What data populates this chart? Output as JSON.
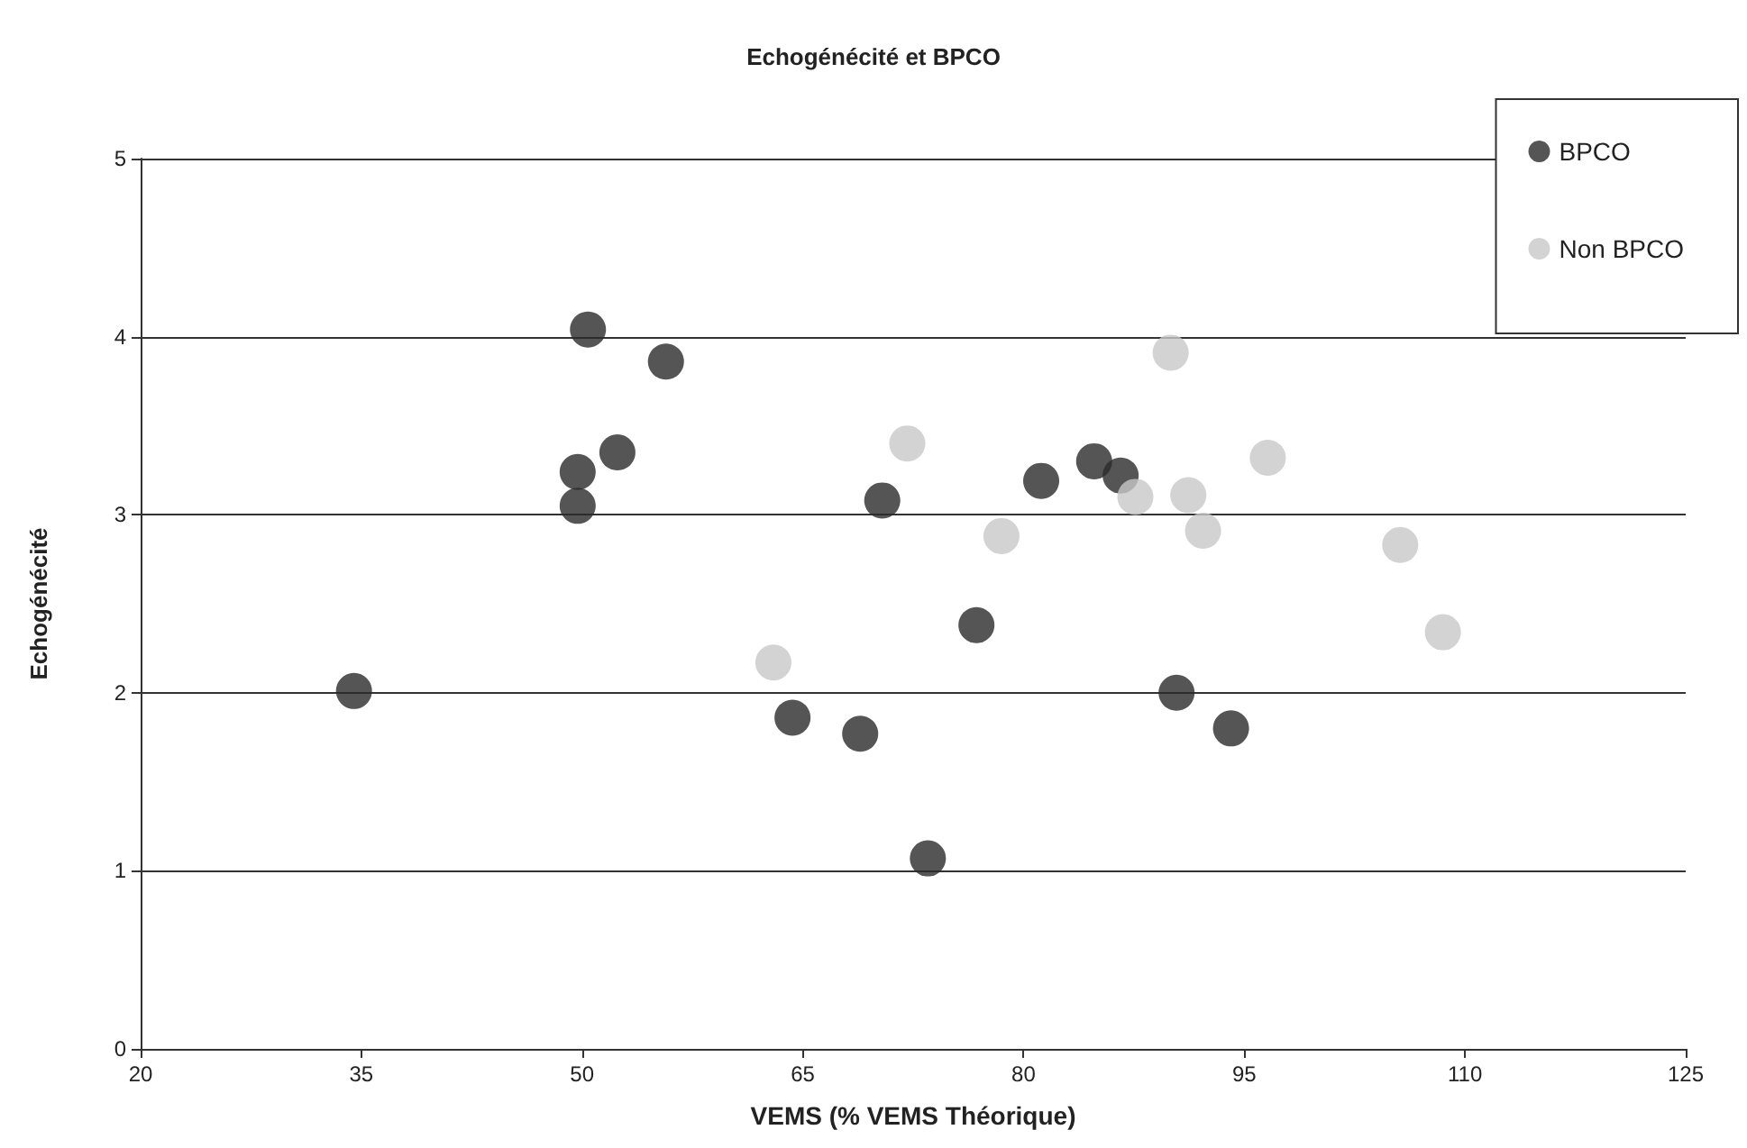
{
  "chart_data": {
    "type": "scatter",
    "title": "Echogénécité et BPCO",
    "xlabel": "VEMS (% VEMS Théorique)",
    "ylabel": "Echogénécité",
    "xlim": [
      20,
      125
    ],
    "xticks": [
      20,
      35,
      50,
      65,
      80,
      95,
      110,
      125
    ],
    "ylim": [
      0,
      5
    ],
    "yticks": [
      0,
      1,
      2,
      3,
      4,
      5
    ],
    "grid": "y",
    "legend": "top right",
    "marker": "circle",
    "series": [
      {
        "name": "BPCO",
        "color": "#2b2b2b",
        "x": [
          34.5,
          50.4,
          49.7,
          49.7,
          52.4,
          55.7,
          64.3,
          68.9,
          70.4,
          73.5,
          76.8,
          81.2,
          84.8,
          86.6,
          90.4,
          94.1
        ],
        "values": [
          2.01,
          4.04,
          3.24,
          3.05,
          3.35,
          3.86,
          1.86,
          1.77,
          3.08,
          1.07,
          2.38,
          3.19,
          3.3,
          3.22,
          2.0,
          1.8
        ]
      },
      {
        "name": "Non BPCO",
        "color": "#c8c8c8",
        "x": [
          72.1,
          63.0,
          78.5,
          90.0,
          87.6,
          91.2,
          92.2,
          96.6,
          105.6,
          108.5
        ],
        "values": [
          3.4,
          2.17,
          2.88,
          3.91,
          3.1,
          3.11,
          2.91,
          3.32,
          2.83,
          2.34
        ]
      }
    ]
  }
}
